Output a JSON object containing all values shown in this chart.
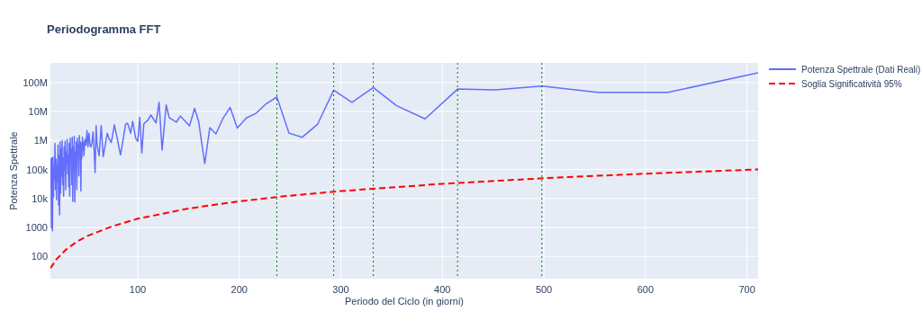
{
  "chart_data": {
    "type": "line",
    "title": "Periodogramma FFT",
    "xlabel": "Periodo del Ciclo (in giorni)",
    "ylabel": "Potenza Spettrale",
    "log": "y",
    "grid": true,
    "legend": "top right",
    "xlim": [
      14,
      711
    ],
    "xticks": [
      100,
      200,
      300,
      400,
      500,
      600,
      700
    ],
    "ylim": [
      17,
      480000000
    ],
    "yticks": [
      100,
      1000,
      {
        "value": 10000,
        "label": "10k"
      },
      {
        "value": 100000,
        "label": "100k"
      },
      {
        "value": 1000000,
        "label": "1M"
      },
      {
        "value": 10000000,
        "label": "10M"
      },
      {
        "value": 100000000,
        "label": "100M"
      }
    ],
    "series": [
      {
        "name": "Potenza Spettrale (Dati Reali)",
        "color": "#636efa",
        "line_style": "solid",
        "x": [
          14.5,
          15,
          15.5,
          16,
          16.5,
          17,
          17.5,
          18,
          18.5,
          19,
          19.5,
          20,
          20.5,
          21,
          21.5,
          22,
          22.5,
          23,
          23.5,
          24,
          24.5,
          25,
          25.5,
          26,
          26.5,
          27,
          27.5,
          28,
          28.5,
          29,
          29.5,
          30,
          30.5,
          31,
          31.5,
          32,
          32.5,
          33,
          33.5,
          34,
          34.5,
          35,
          35.5,
          36,
          36.5,
          37,
          37.5,
          38,
          38.5,
          39,
          39.5,
          40,
          40.5,
          41,
          41.5,
          42,
          42.5,
          43,
          43.5,
          44,
          44.5,
          45,
          45.5,
          46,
          46.5,
          47,
          48,
          49,
          50,
          51,
          52,
          53,
          54,
          55,
          56,
          57,
          58,
          59,
          60,
          62,
          64,
          66,
          68,
          70,
          72,
          74,
          77,
          80,
          83,
          86,
          88,
          90,
          93,
          95,
          98,
          100,
          102,
          104,
          106,
          110,
          113,
          118,
          121,
          124,
          128,
          131,
          138,
          142,
          151,
          156,
          160,
          166,
          171,
          177,
          184,
          191,
          198,
          207,
          216,
          226,
          237,
          249,
          262,
          277,
          293,
          311,
          332,
          355,
          383,
          415,
          452,
          498,
          553,
          622,
          711
        ],
        "values": [
          240000,
          1000,
          250000,
          760,
          270000,
          11000,
          130000,
          46000,
          800000,
          20000,
          230000,
          9000,
          150000,
          40000,
          700000,
          6000,
          300000,
          2700,
          900000,
          15000,
          500000,
          60000,
          1000000,
          30000,
          250000,
          12000,
          600000,
          90000,
          950000,
          20000,
          400000,
          150000,
          1100000,
          70000,
          300000,
          25000,
          800000,
          12000,
          1200000,
          200000,
          500000,
          30000,
          1300000,
          8000,
          600000,
          100000,
          1400000,
          7500,
          400000,
          150000,
          900000,
          20000,
          1200000,
          300000,
          700000,
          60000,
          1500000,
          400000,
          900000,
          18000,
          800000,
          250000,
          1300000,
          500000,
          900000,
          300000,
          1100000,
          700000,
          2200000,
          600000,
          1800000,
          700000,
          600000,
          900000,
          2000000,
          490000,
          78000,
          3300000,
          700000,
          300000,
          3300000,
          280000,
          700000,
          1800000,
          1100000,
          860000,
          3500000,
          1100000,
          320000,
          1300000,
          3700000,
          4000000,
          1800000,
          4600000,
          1200000,
          940000,
          6400000,
          370000,
          3800000,
          5100000,
          7600000,
          4000000,
          21000000,
          470000,
          17000000,
          6200000,
          4300000,
          7000000,
          3200000,
          13000000,
          4500000,
          160000,
          2800000,
          1700000,
          5900000,
          14000000,
          2700000,
          6000000,
          8500000,
          18000000,
          32000000,
          1800000,
          1300000,
          3600000,
          55000000,
          21000000,
          68000000,
          16000000,
          5600000,
          60000000,
          56000000,
          76000000,
          46000000,
          46000000,
          220000000
        ]
      },
      {
        "name": "Soglia Significatività 95%",
        "color": "#ff0000",
        "line_style": "dashed",
        "x": [
          14,
          20,
          30,
          40,
          50,
          75,
          100,
          150,
          200,
          250,
          300,
          400,
          500,
          600,
          711
        ],
        "values": [
          39,
          80,
          180,
          320,
          500,
          1100,
          2000,
          4500,
          8000,
          12500,
          18000,
          32000,
          50000,
          72000,
          101000
        ]
      }
    ],
    "ref_lines": [
      {
        "axis": "x",
        "value": 237,
        "color": "#008000",
        "line_style": "dotted"
      },
      {
        "axis": "x",
        "value": 293,
        "color": "#008000",
        "line_style": "dotted"
      },
      {
        "axis": "x",
        "value": 332,
        "color": "#008000",
        "line_style": "dotted"
      },
      {
        "axis": "x",
        "value": 415,
        "color": "#008000",
        "line_style": "dotted"
      },
      {
        "axis": "x",
        "value": 498,
        "color": "#008000",
        "line_style": "dotted"
      }
    ]
  }
}
